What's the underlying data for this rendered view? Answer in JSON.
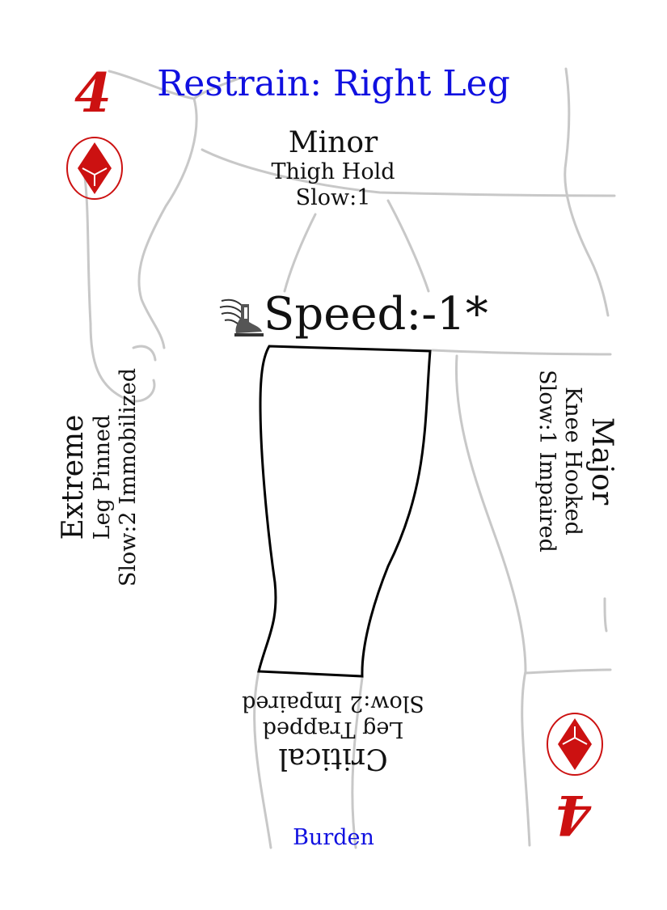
{
  "card": {
    "title": "Restrain: Right Leg",
    "rank": "4",
    "suit_icon": "diamond-suit-icon",
    "accent_color": "#cc1111",
    "title_color": "#1010e0",
    "stat_icon": "winged-boot-icon",
    "stat": "Speed:-1*",
    "footer": "Burden"
  },
  "severities": {
    "minor": {
      "label": "Minor",
      "name": "Thigh Hold",
      "effect": "Slow:1"
    },
    "major": {
      "label": "Major",
      "name": "Knee Hooked",
      "effect": "Slow:1 Impaired"
    },
    "critical": {
      "label": "Critical",
      "name": "Leg Trapped",
      "effect": "Slow:2 Impaired"
    },
    "extreme": {
      "label": "Extreme",
      "name": "Leg Pinned",
      "effect": "Slow:2 Immobilized"
    }
  }
}
